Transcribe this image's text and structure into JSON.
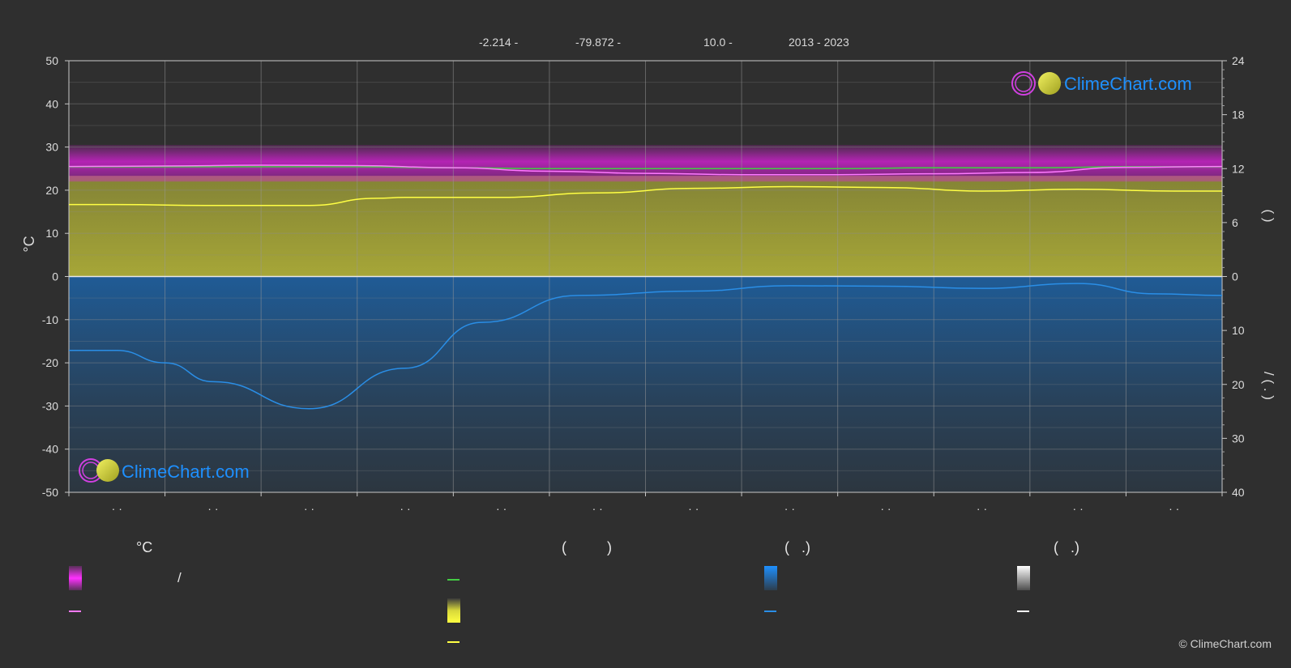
{
  "header": {
    "latitude": "-2.214 -",
    "longitude": "-79.872 -",
    "elevation": "10.0 -",
    "period": "2013 - 2023"
  },
  "colors": {
    "background": "#2f2f2f",
    "grid": "#6a6a6a",
    "temp_band": "#e020e0",
    "temp_line": "#ff7aff",
    "daylight_line": "#44cc44",
    "sunshine_band": "#c8c83a",
    "sunshine_line": "#ffff44",
    "precip_band": "#1a6ab8",
    "precip_line": "#2a8ee6",
    "snow_line": "#ffffff",
    "brand_blue": "#1e90ff"
  },
  "logo_text": "ClimeChart.com",
  "copyright": "© ClimeChart.com",
  "chart_data": {
    "type": "line",
    "y_left": {
      "label": "°C",
      "ticks": [
        50,
        40,
        30,
        20,
        10,
        0,
        -10,
        -20,
        -30,
        -40,
        -50
      ],
      "range": [
        -50,
        50
      ]
    },
    "y_right_top": {
      "label": "(   )",
      "ticks": [
        24,
        18,
        12,
        6,
        0
      ],
      "range": [
        0,
        24
      ]
    },
    "y_right_bottom": {
      "label": "/   (   .   )",
      "ticks": [
        0,
        10,
        20,
        30,
        40
      ],
      "range": [
        0,
        40
      ]
    },
    "x_tick_labels": [
      "· ·",
      "· ·",
      "· ·",
      "· ·",
      "· ·",
      "· ·",
      "· ·",
      "· ·",
      "· ·",
      "· ·",
      "· ·",
      "· ·"
    ],
    "months": 12,
    "grid": true,
    "series": [
      {
        "key": "daylight",
        "axis": "hours",
        "x": [
          0,
          1,
          2,
          3,
          4,
          5,
          6,
          7,
          8,
          9,
          10,
          11,
          12
        ],
        "values": [
          12.2,
          12.2,
          12.2,
          12.2,
          12.1,
          12.0,
          12.0,
          12.0,
          12.0,
          12.1,
          12.1,
          12.2,
          12.2
        ]
      },
      {
        "key": "temp_mean",
        "axis": "temp",
        "x": [
          0,
          1,
          2,
          3,
          4,
          5,
          6,
          7,
          8,
          9,
          10,
          11,
          12
        ],
        "values": [
          25.5,
          25.6,
          25.8,
          25.7,
          25.2,
          24.4,
          23.9,
          23.6,
          23.6,
          23.8,
          24.1,
          25.3,
          25.5
        ]
      },
      {
        "key": "sunshine",
        "axis": "hours",
        "x": [
          0,
          0.5,
          1.5,
          2.5,
          3.2,
          3.5,
          4.5,
          5.5,
          6.5,
          7.5,
          8.5,
          9.5,
          10.5,
          11.5,
          12
        ],
        "values": [
          8.0,
          8.0,
          7.9,
          7.9,
          8.7,
          8.8,
          8.8,
          9.3,
          9.8,
          10.0,
          9.9,
          9.5,
          9.7,
          9.5,
          9.5
        ]
      },
      {
        "key": "precip",
        "axis": "precip",
        "x": [
          0,
          0.5,
          1,
          1.5,
          2.5,
          3.5,
          4.3,
          5.3,
          6.5,
          7.5,
          8.5,
          9.5,
          10.5,
          11.3,
          12
        ],
        "values": [
          13.7,
          13.7,
          16,
          19.5,
          24.5,
          17,
          8.5,
          3.5,
          2.7,
          1.7,
          1.8,
          2.2,
          1.3,
          3.2,
          3.5
        ]
      }
    ]
  },
  "legend": {
    "col1": {
      "heading": "°C",
      "row1_text": "/",
      "row2_text": ""
    },
    "col2": {
      "heading": "(          )",
      "row1_text": "",
      "row2_text": "",
      "row3_text": ""
    },
    "col3": {
      "heading": "(   .)",
      "row1_text": "",
      "row2_text": ""
    },
    "col4": {
      "heading": "(   .)",
      "row1_text": "",
      "row2_text": ""
    }
  }
}
